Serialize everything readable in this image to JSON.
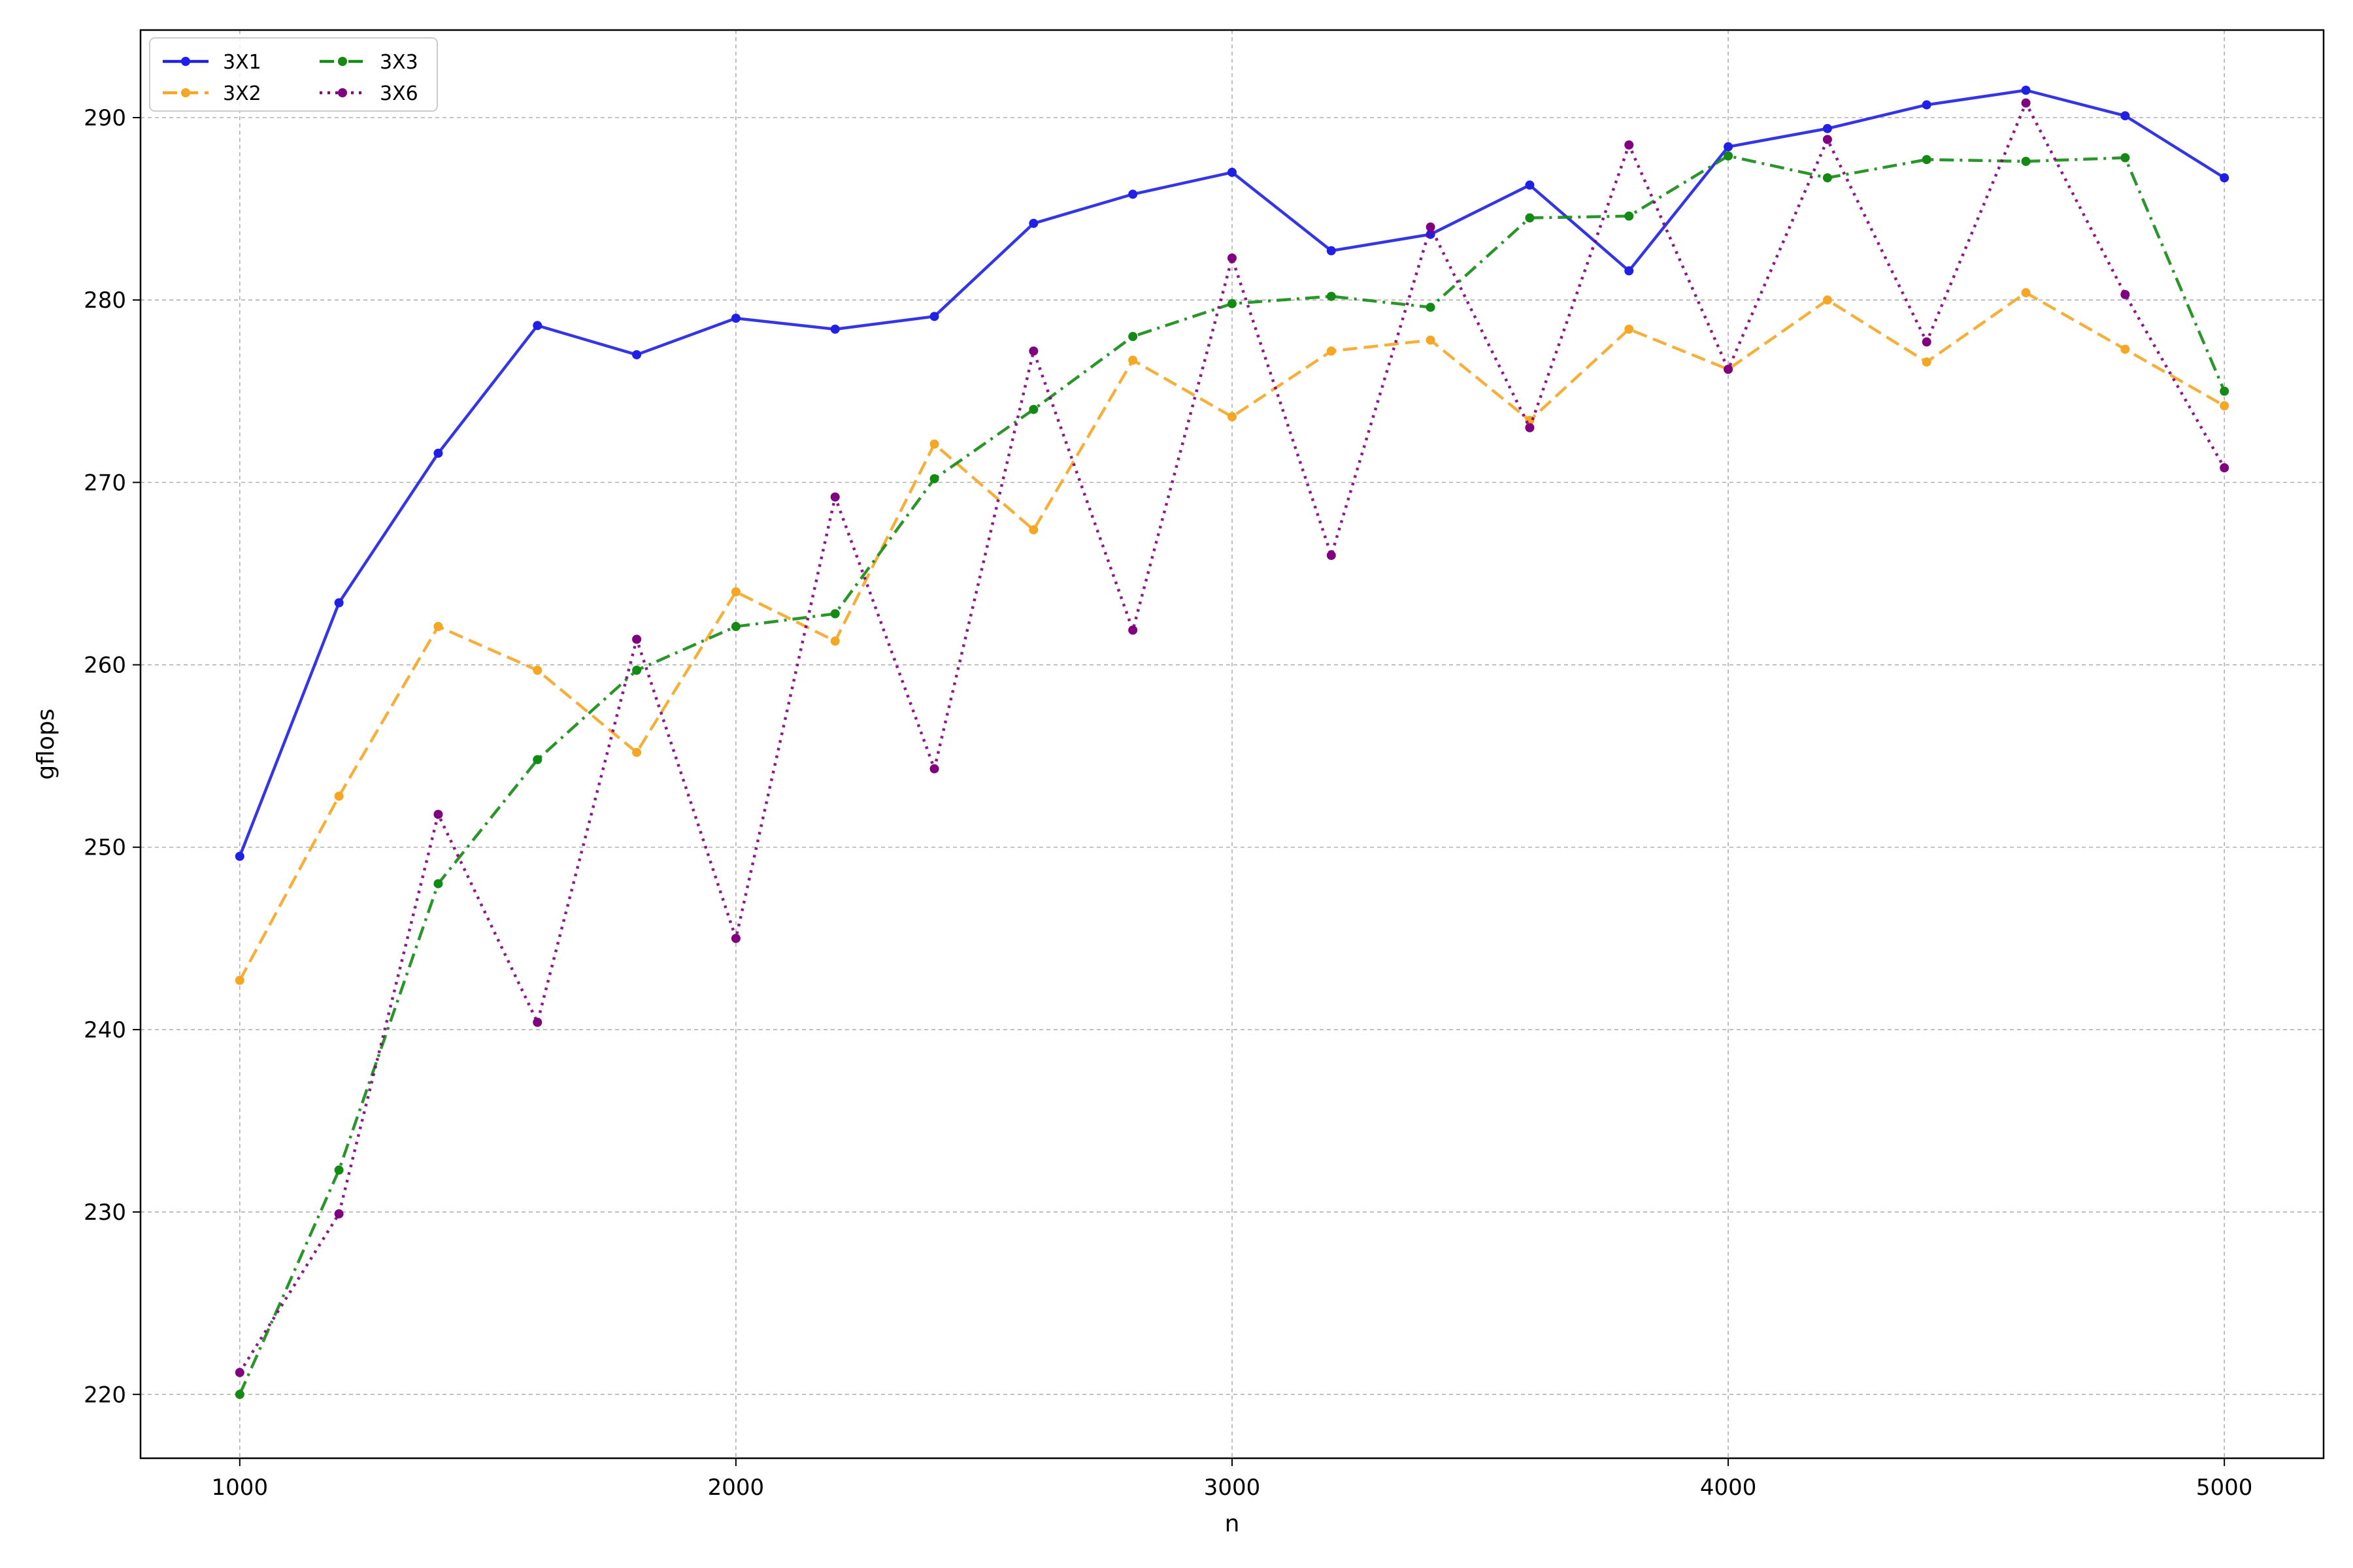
{
  "chart_data": {
    "type": "line",
    "xlabel": "n",
    "ylabel": "gflops",
    "xlim": [
      800,
      5200
    ],
    "ylim": [
      216.5,
      294.8
    ],
    "x_ticks": [
      1000,
      2000,
      3000,
      4000,
      5000
    ],
    "y_ticks": [
      220,
      230,
      240,
      250,
      260,
      270,
      280,
      290
    ],
    "grid": true,
    "legend_position": "top-left",
    "x": [
      1000,
      1200,
      1400,
      1600,
      1800,
      2000,
      2200,
      2400,
      2600,
      2800,
      3000,
      3200,
      3400,
      3600,
      3800,
      4000,
      4200,
      4400,
      4600,
      4800,
      5000
    ],
    "series": [
      {
        "name": "3X1",
        "color": "#1f1fe6",
        "dash": "solid",
        "values": [
          249.5,
          263.4,
          271.6,
          278.6,
          277.0,
          279.0,
          278.4,
          279.1,
          284.2,
          285.8,
          287.0,
          282.7,
          283.6,
          286.3,
          281.6,
          288.4,
          289.4,
          290.7,
          291.5,
          290.1,
          286.7
        ]
      },
      {
        "name": "3X2",
        "color": "#f5a623",
        "dash": "dashed",
        "values": [
          242.7,
          252.8,
          262.1,
          259.7,
          255.2,
          264.0,
          261.3,
          272.1,
          267.4,
          276.7,
          273.6,
          277.2,
          277.8,
          273.4,
          278.4,
          276.2,
          280.0,
          276.6,
          280.4,
          277.3,
          274.2
        ]
      },
      {
        "name": "3X3",
        "color": "#138a13",
        "dash": "dashdot",
        "values": [
          220.0,
          232.3,
          248.0,
          254.8,
          259.7,
          262.1,
          262.8,
          270.2,
          274.0,
          278.0,
          279.8,
          280.2,
          279.6,
          284.5,
          284.6,
          287.9,
          286.7,
          287.7,
          287.6,
          287.8,
          275.0
        ]
      },
      {
        "name": "3X6",
        "color": "#800080",
        "dash": "dotted",
        "values": [
          221.2,
          229.9,
          251.8,
          240.4,
          261.4,
          245.0,
          269.2,
          254.3,
          277.2,
          261.9,
          282.3,
          266.0,
          284.0,
          273.0,
          288.5,
          276.2,
          288.8,
          277.7,
          290.8,
          280.3,
          270.8
        ]
      }
    ]
  }
}
